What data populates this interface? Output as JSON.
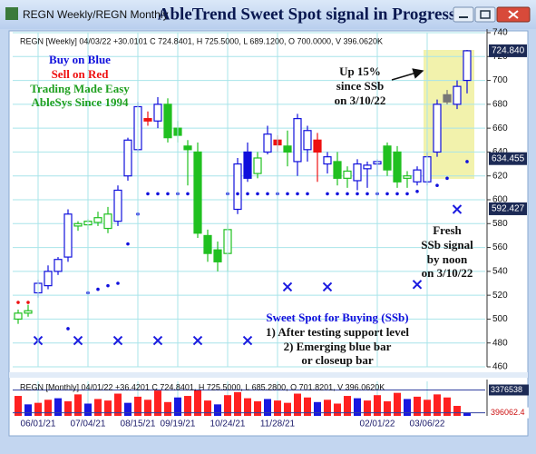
{
  "window": {
    "title": "REGN Weekly/REGN Monthly"
  },
  "chart_data": [
    {
      "type": "candlestick",
      "title": "AbleTrend Sweet Spot signal in Progress",
      "header": "REGN [Weekly] 04/03/22 +30.0101 C 724.8401, H 725.5000, L 689.1200, O 700.0000, V 396.0620K",
      "open": [
        500,
        505,
        522,
        528,
        540,
        552,
        578,
        579,
        581,
        576,
        582,
        620,
        642,
        668,
        666,
        680,
        660,
        645,
        640,
        570,
        558,
        555,
        592,
        640,
        622,
        640,
        650,
        645,
        632,
        642,
        650,
        630,
        632,
        618,
        616,
        626,
        630,
        645,
        640,
        618,
        615,
        615,
        640,
        688,
        680,
        700
      ],
      "high": [
        508,
        512,
        533,
        545,
        552,
        592,
        582,
        584,
        590,
        594,
        612,
        652,
        682,
        674,
        686,
        685,
        666,
        650,
        648,
        575,
        565,
        580,
        635,
        648,
        640,
        662,
        654,
        658,
        672,
        662,
        656,
        640,
        640,
        628,
        634,
        632,
        634,
        648,
        645,
        624,
        628,
        640,
        684,
        692,
        700,
        725.5
      ],
      "low": [
        496,
        502,
        518,
        525,
        537,
        548,
        574,
        575,
        578,
        572,
        578,
        616,
        640,
        662,
        660,
        648,
        648,
        612,
        568,
        548,
        540,
        540,
        588,
        615,
        618,
        638,
        640,
        628,
        620,
        632,
        615,
        622,
        612,
        610,
        608,
        610,
        620,
        620,
        610,
        610,
        612,
        612,
        636,
        680,
        676,
        689.12
      ],
      "close": [
        505,
        507,
        530,
        540,
        550,
        588,
        580,
        582,
        585,
        588,
        608,
        650,
        678,
        666,
        680,
        652,
        654,
        642,
        572,
        555,
        548,
        575,
        630,
        618,
        635,
        655,
        646,
        640,
        668,
        658,
        640,
        636,
        618,
        624,
        630,
        629,
        632,
        625,
        615,
        620,
        625,
        636,
        680,
        682,
        695,
        724.84
      ],
      "colors": [
        "#20c020",
        "#20c020",
        "#1010dd",
        "#1010dd",
        "#1010dd",
        "#1010dd",
        "#20c020",
        "#20c020",
        "#20c020",
        "#20c020",
        "#1010dd",
        "#1010dd",
        "#1010dd",
        "#ee1111",
        "#1010dd",
        "#20c020",
        "#20c020",
        "#20c020",
        "#20c020",
        "#20c020",
        "#20c020",
        "#20c020",
        "#1010dd",
        "#1010dd",
        "#20c020",
        "#1010dd",
        "#ee1111",
        "#20c020",
        "#1010dd",
        "#1010dd",
        "#ee1111",
        "#1010dd",
        "#20c020",
        "#20c020",
        "#1010dd",
        "#1010dd",
        "#1010dd",
        "#20c020",
        "#20c020",
        "#20c020",
        "#1010dd",
        "#1010dd",
        "#1010dd",
        "#777777",
        "#1010dd",
        "#1010dd"
      ],
      "red_dots": [
        514,
        514,
        null,
        null,
        null,
        null,
        null,
        null,
        null,
        null,
        null,
        null,
        null,
        null,
        null,
        null,
        null,
        null,
        null,
        null,
        null,
        null,
        null,
        null,
        null,
        null,
        null,
        null,
        null,
        null,
        null,
        null,
        null,
        null,
        null,
        null,
        null,
        null,
        null,
        null,
        null,
        null,
        null,
        null,
        null,
        null
      ],
      "blue_dots": [
        null,
        null,
        null,
        null,
        null,
        492,
        null,
        522,
        525,
        528,
        530,
        563,
        588,
        605,
        605,
        605,
        605,
        605,
        null,
        null,
        null,
        605,
        605,
        605,
        605,
        605,
        605,
        605,
        605,
        605,
        null,
        605,
        605,
        605,
        605,
        605,
        605,
        605,
        605,
        605,
        607,
        null,
        612,
        618,
        null,
        632
      ],
      "sweet_spot_marks": [
        null,
        null,
        482,
        null,
        null,
        null,
        482,
        null,
        null,
        null,
        482,
        null,
        null,
        null,
        482,
        null,
        null,
        null,
        482,
        null,
        null,
        null,
        null,
        482,
        null,
        null,
        null,
        527,
        null,
        null,
        null,
        527,
        null,
        null,
        null,
        null,
        null,
        null,
        null,
        null,
        529,
        null,
        null,
        null,
        592,
        null
      ],
      "sweet_spot_color": "#1a1ae0",
      "ylim": [
        460,
        740
      ],
      "yticks": [
        460,
        480,
        500,
        520,
        540,
        560,
        580,
        600,
        620,
        640,
        660,
        680,
        700,
        720,
        740
      ],
      "price_labels": [
        {
          "value": 724.84,
          "label": "724.840"
        },
        {
          "value": 634.455,
          "label": "634.455"
        },
        {
          "value": 592.427,
          "label": "592.427"
        }
      ],
      "grid": true,
      "notes": {
        "left": [
          "Buy on Blue",
          "Sell on Red",
          "Trading Made Easy",
          "AbleSys Since 1994"
        ],
        "up": [
          "Up 15%",
          "since SSb",
          "on 3/10/22"
        ],
        "fresh": [
          "Fresh",
          "SSb signal",
          "by noon",
          "on 3/10/22"
        ],
        "ssb": [
          "Sweet Spot for Buying (SSb)",
          "1) After testing support level",
          "2) Emerging blue bar",
          "or closeup bar"
        ]
      }
    },
    {
      "type": "bar",
      "title": "REGN [Monthly] 04/01/22 +36.4201 C 724.8401, H 725.5000, L 685.2800, O 701.8201, V 396.0620K",
      "categories": [
        null,
        null,
        "06/01/21",
        null,
        null,
        null,
        null,
        "07/04/21",
        null,
        null,
        null,
        null,
        "08/15/21",
        null,
        null,
        null,
        "09/19/21",
        null,
        null,
        null,
        null,
        "10/24/21",
        null,
        null,
        null,
        null,
        "11/28/21",
        null,
        null,
        null,
        null,
        null,
        null,
        null,
        null,
        null,
        "02/01/22",
        null,
        null,
        null,
        null,
        "03/06/22",
        null,
        null,
        null,
        null
      ],
      "values": [
        2600000,
        1500000,
        1700000,
        2100000,
        2300000,
        1900000,
        2800000,
        1600000,
        2200000,
        2000000,
        2900000,
        1700000,
        2500000,
        2100000,
        3300000,
        1800000,
        2400000,
        2600000,
        3400000,
        2000000,
        1500000,
        2700000,
        3100000,
        2300000,
        1900000,
        2200000,
        2000000,
        1700000,
        2900000,
        2400000,
        1800000,
        2100000,
        1600000,
        2600000,
        2300000,
        2000000,
        2700000,
        1900000,
        3000000,
        2200000,
        2500000,
        2100000,
        2800000,
        2400000,
        1300000,
        400000
      ],
      "colors": [
        "#ff2020",
        "#1818e0",
        "#ff2020",
        "#ff2020",
        "#1818e0",
        "#ff2020",
        "#ff2020",
        "#1818e0",
        "#ff2020",
        "#ff2020",
        "#ff2020",
        "#1818e0",
        "#ff2020",
        "#ff2020",
        "#ff2020",
        "#ff2020",
        "#1818e0",
        "#ff2020",
        "#ff2020",
        "#ff2020",
        "#1818e0",
        "#ff2020",
        "#ff2020",
        "#ff2020",
        "#ff2020",
        "#1818e0",
        "#ff2020",
        "#ff2020",
        "#ff2020",
        "#ff2020",
        "#1818e0",
        "#ff2020",
        "#ff2020",
        "#ff2020",
        "#1818e0",
        "#ff2020",
        "#ff2020",
        "#ff2020",
        "#ff2020",
        "#1818e0",
        "#ff2020",
        "#ff2020",
        "#ff2020",
        "#ff2020",
        "#ff2020",
        "#1818e0"
      ],
      "ylim": [
        0,
        4500000
      ],
      "yticks": [
        3376538,
        396062.4
      ]
    }
  ]
}
